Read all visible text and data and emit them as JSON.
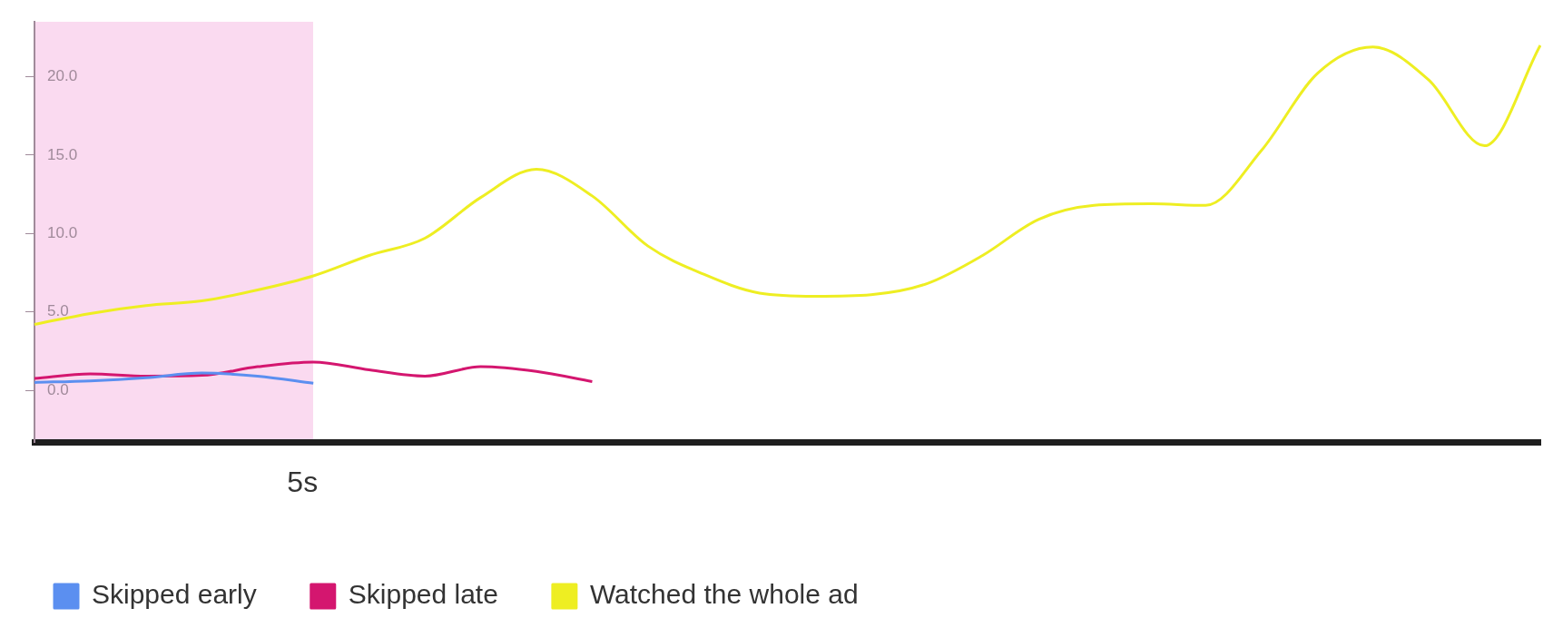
{
  "chart_data": {
    "type": "line",
    "categories": [
      null,
      null,
      null,
      null,
      null,
      null,
      null,
      null,
      null,
      null,
      null,
      null,
      null,
      null,
      null,
      null,
      null,
      null,
      null,
      null,
      null,
      null,
      null,
      null,
      null,
      null,
      null,
      null
    ],
    "ylim": [
      -3.3,
      23.5
    ],
    "yticks": [
      {
        "value": 0,
        "label": "0.0"
      },
      {
        "value": 5,
        "label": "5.0"
      },
      {
        "value": 10,
        "label": "10.0"
      },
      {
        "value": 15,
        "label": "15.0"
      },
      {
        "value": 20,
        "label": "20.0"
      }
    ],
    "grid": false,
    "legend": "bottom left",
    "marker": "none",
    "line_style": "solid",
    "tick_labels": "y",
    "annotations": [
      "5s"
    ],
    "series": [
      {
        "name": "Skipped early",
        "color": "#5b8ff0",
        "values": [
          0.5,
          0.6,
          0.8,
          1.1,
          0.9,
          0.45,
          null,
          null,
          null,
          null,
          null,
          null,
          null,
          null,
          null,
          null,
          null,
          null,
          null,
          null,
          null,
          null,
          null,
          null,
          null,
          null,
          null,
          null
        ]
      },
      {
        "name": "Skipped late",
        "color": "#d4166f",
        "values": [
          0.75,
          1.05,
          0.9,
          0.95,
          1.5,
          1.8,
          1.3,
          0.9,
          1.5,
          1.2,
          0.55,
          null,
          null,
          null,
          null,
          null,
          null,
          null,
          null,
          null,
          null,
          null,
          null,
          null,
          null,
          null,
          null,
          null
        ]
      },
      {
        "name": "Watched the whole ad",
        "color": "#eeee22",
        "values": [
          4.2,
          4.9,
          5.4,
          5.7,
          6.4,
          7.3,
          8.6,
          9.7,
          12.3,
          14.1,
          12.4,
          9.2,
          7.4,
          6.2,
          6.0,
          6.1,
          6.8,
          8.6,
          10.9,
          11.8,
          11.9,
          11.8,
          15.3,
          20.2,
          21.9,
          19.8,
          15.6,
          22.0
        ]
      }
    ]
  }
}
